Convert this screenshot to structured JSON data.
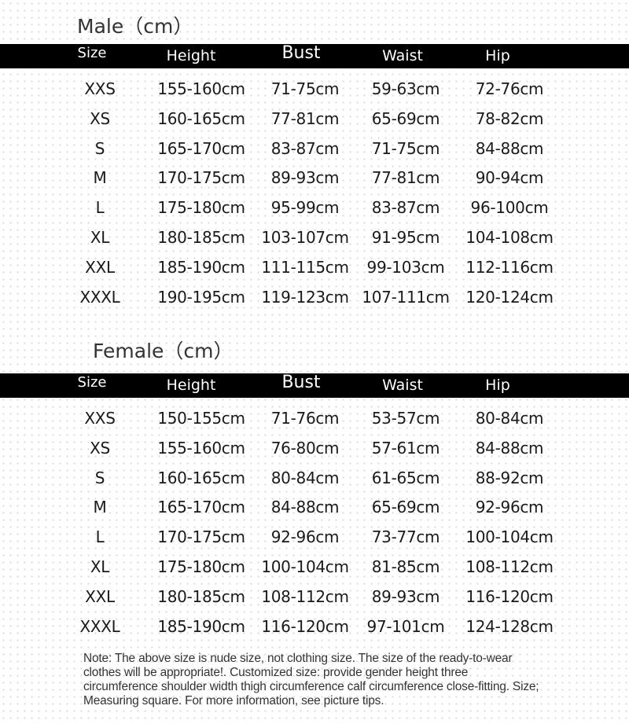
{
  "headers": [
    "Size",
    "Height",
    "Bust",
    "Waist",
    "Hip"
  ],
  "male": {
    "title": "Male（cm）",
    "rows": [
      [
        "XXS",
        "155-160cm",
        "71-75cm",
        "59-63cm",
        "72-76cm"
      ],
      [
        "XS",
        "160-165cm",
        "77-81cm",
        "65-69cm",
        "78-82cm"
      ],
      [
        "S",
        "165-170cm",
        "83-87cm",
        "71-75cm",
        "84-88cm"
      ],
      [
        "M",
        "170-175cm",
        "89-93cm",
        "77-81cm",
        "90-94cm"
      ],
      [
        "L",
        "175-180cm",
        "95-99cm",
        "83-87cm",
        "96-100cm"
      ],
      [
        "XL",
        "180-185cm",
        "103-107cm",
        "91-95cm",
        "104-108cm"
      ],
      [
        "XXL",
        "185-190cm",
        "111-115cm",
        "99-103cm",
        "112-116cm"
      ],
      [
        "XXXL",
        "190-195cm",
        "119-123cm",
        "107-111cm",
        "120-124cm"
      ]
    ]
  },
  "female": {
    "title": "Female（cm）",
    "rows": [
      [
        "XXS",
        "150-155cm",
        "71-76cm",
        "53-57cm",
        "80-84cm"
      ],
      [
        "XS",
        "155-160cm",
        "76-80cm",
        "57-61cm",
        "84-88cm"
      ],
      [
        "S",
        "160-165cm",
        "80-84cm",
        "61-65cm",
        "88-92cm"
      ],
      [
        "M",
        "165-170cm",
        "84-88cm",
        "65-69cm",
        "92-96cm"
      ],
      [
        "L",
        "170-175cm",
        "92-96cm",
        "73-77cm",
        "100-104cm"
      ],
      [
        "XL",
        "175-180cm",
        "100-104cm",
        "81-85cm",
        "108-112cm"
      ],
      [
        "XXL",
        "180-185cm",
        "108-112cm",
        "89-93cm",
        "116-120cm"
      ],
      [
        "XXXL",
        "185-190cm",
        "116-120cm",
        "97-101cm",
        "124-128cm"
      ]
    ]
  },
  "note": "Note: The above size is nude size, not clothing size. The size of the ready-to-wear clothes will be appropriate!. Customized size: provide gender height three circumference shoulder width thigh circumference calf circumference close-fitting. Size; Measuring square. For more information, see picture tips."
}
